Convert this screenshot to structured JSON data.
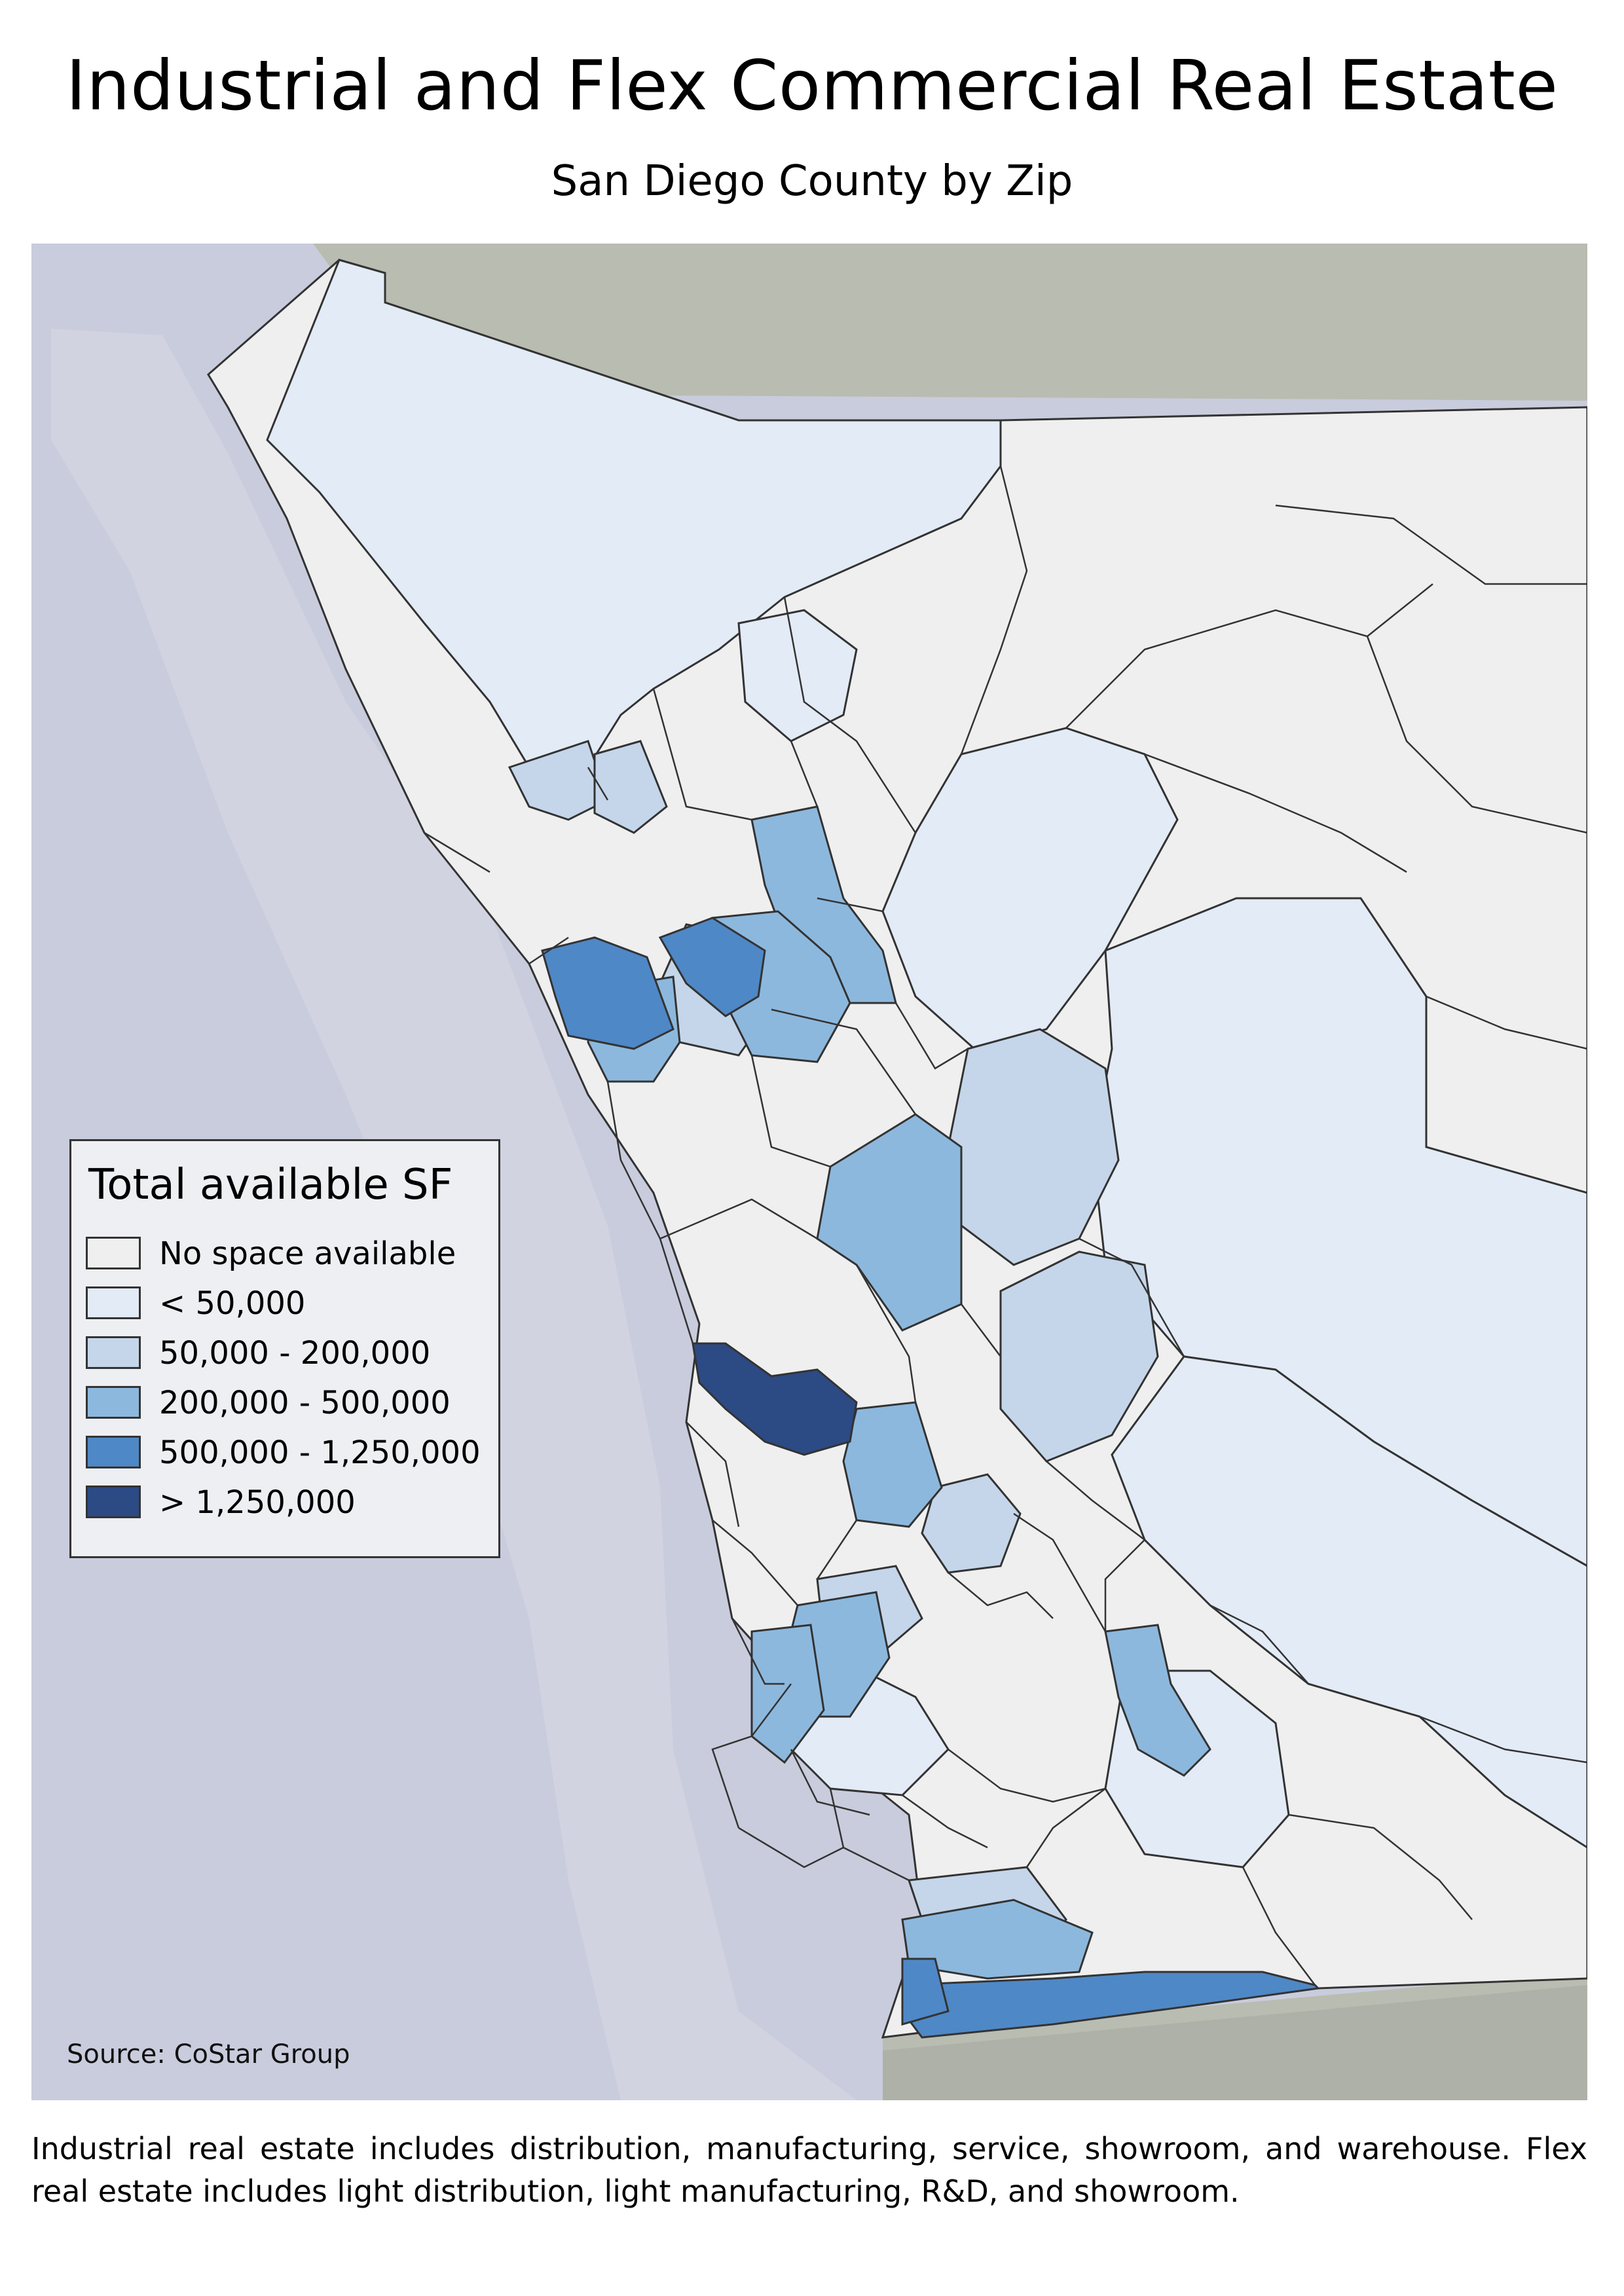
{
  "title": "Industrial and Flex Commercial Real Estate",
  "subtitle": "San Diego County by Zip",
  "legend": {
    "title": "Total available SF",
    "items": [
      {
        "label": "No space available",
        "color": "#efefef"
      },
      {
        "label": "< 50,000",
        "color": "#e3ebf6"
      },
      {
        "label": "50,000 - 200,000",
        "color": "#c5d6ea"
      },
      {
        "label": "200,000 - 500,000",
        "color": "#8db8dd"
      },
      {
        "label": "500,000 - 1,250,000",
        "color": "#4f88c6"
      },
      {
        "label": "> 1,250,000",
        "color": "#2c4a84"
      }
    ]
  },
  "source": "Source: CoStar Group",
  "footnote": "Industrial real estate includes distribution, manufacturing, service, showroom, and warehouse. Flex real estate includes light distribution, light manufacturing, R&D, and  showroom.",
  "colors": {
    "ocean": "#c9ccdc",
    "terrain": "#b9bcb0",
    "boundary": "#333333"
  }
}
